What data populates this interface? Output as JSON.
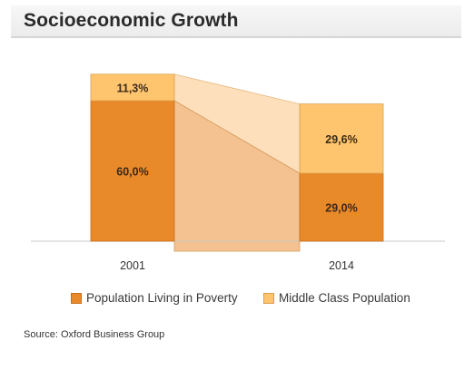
{
  "header": {
    "title": "Socioeconomic Growth"
  },
  "chart_data": {
    "type": "bar",
    "stacked": true,
    "categories": [
      "2001",
      "2014"
    ],
    "series": [
      {
        "name": "Population Living in Poverty",
        "values": [
          60.0,
          29.0
        ],
        "labels": [
          "60,0%",
          "29,0%"
        ],
        "color": "#e8892a",
        "band_color": "#f4c290"
      },
      {
        "name": "Middle Class Population",
        "values": [
          11.3,
          29.6
        ],
        "labels": [
          "11,3%",
          "29,6%"
        ],
        "color": "#ffc46e",
        "band_color": "#fde0bb"
      }
    ],
    "ylim": [
      0,
      75
    ],
    "grid": false,
    "legend_position": "bottom"
  },
  "source": {
    "text": "Source: Oxford Business Group"
  }
}
